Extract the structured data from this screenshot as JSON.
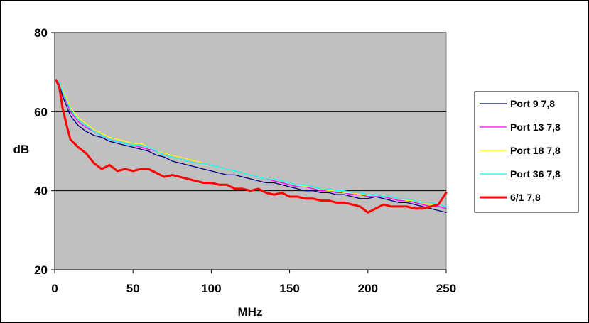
{
  "chart_data": {
    "type": "line",
    "title": "",
    "xlabel": "MHz",
    "ylabel": "dB",
    "xlim": [
      0,
      250
    ],
    "ylim": [
      20,
      80
    ],
    "xticks": [
      "0",
      "50",
      "100",
      "150",
      "200",
      "250"
    ],
    "yticks": [
      "20",
      "40",
      "60",
      "80"
    ],
    "grid": "horizontal",
    "plot_background": "#c0c0c0",
    "legend_position": "right",
    "x": [
      1,
      3,
      5,
      8,
      10,
      15,
      20,
      25,
      30,
      35,
      40,
      45,
      50,
      55,
      60,
      65,
      70,
      75,
      80,
      85,
      90,
      95,
      100,
      105,
      110,
      115,
      120,
      125,
      130,
      135,
      140,
      145,
      150,
      155,
      160,
      165,
      170,
      175,
      180,
      185,
      190,
      195,
      200,
      205,
      210,
      215,
      220,
      225,
      230,
      235,
      240,
      245,
      250
    ],
    "series": [
      {
        "name": "Port 9 7,8",
        "color": "#000080",
        "width": 1.3,
        "values": [
          68,
          67,
          64,
          61,
          59,
          56.5,
          55,
          54,
          53.5,
          52.5,
          52,
          51.5,
          51,
          50.5,
          50,
          49,
          48.5,
          47.5,
          47,
          46.5,
          46,
          45.5,
          45,
          44.5,
          44,
          44,
          43.5,
          43,
          42.5,
          42,
          42,
          41.5,
          41,
          40.5,
          40,
          40,
          39.5,
          39.5,
          39,
          39,
          38.5,
          38,
          38,
          38.5,
          38,
          37.5,
          37,
          37,
          36.5,
          36,
          35.5,
          35,
          34.5
        ]
      },
      {
        "name": "Port 13 7,8",
        "color": "#ff00ff",
        "width": 1.3,
        "values": [
          68,
          67,
          65,
          62,
          60,
          57.5,
          56,
          55,
          54,
          53,
          52.5,
          52,
          51.5,
          51,
          50.5,
          50,
          49.5,
          49,
          48.5,
          48,
          47.5,
          47,
          46.5,
          46,
          45.5,
          45,
          44.5,
          44,
          43.5,
          43,
          42.5,
          42,
          41.5,
          41,
          41,
          40.5,
          40,
          40,
          39.5,
          39.5,
          39,
          39,
          38.5,
          38.5,
          38.5,
          38,
          37.5,
          37.5,
          37,
          36.5,
          36,
          36,
          35.5
        ]
      },
      {
        "name": "Port 18 7,8",
        "color": "#ffff00",
        "width": 1.3,
        "values": [
          68,
          67.5,
          65.5,
          63,
          61,
          58.5,
          57,
          55.5,
          54.5,
          53.5,
          53,
          52.5,
          52,
          52,
          51,
          50,
          49.5,
          49,
          48.5,
          48,
          47.5,
          47,
          46.5,
          46,
          45.5,
          45,
          44.5,
          44,
          43.5,
          43,
          43,
          42.5,
          42,
          41.5,
          41,
          41,
          40.5,
          40,
          40,
          39.5,
          39.5,
          39,
          39,
          39,
          38.5,
          38.5,
          38,
          37.5,
          37.5,
          37,
          36.5,
          36.5,
          36
        ]
      },
      {
        "name": "Port 36 7,8",
        "color": "#00ffff",
        "width": 1.3,
        "values": [
          68,
          67.5,
          65,
          62.5,
          60.5,
          58,
          56.5,
          55,
          54,
          53,
          52.5,
          52,
          51.5,
          51.5,
          51,
          50,
          49,
          48.5,
          48,
          47.5,
          47,
          47,
          46.5,
          46,
          45.5,
          45,
          44.5,
          44,
          43.5,
          43,
          43,
          42.5,
          42,
          41.5,
          41.5,
          41,
          40.5,
          40.5,
          40,
          40,
          39.5,
          39.5,
          39,
          39,
          38.5,
          38.5,
          38,
          38,
          37.5,
          37,
          37,
          36.5,
          36
        ]
      },
      {
        "name": "6/1 7,8",
        "color": "#ff0000",
        "width": 3,
        "values": [
          68,
          66,
          61,
          56,
          53,
          51,
          49.5,
          47,
          45.5,
          46.5,
          45,
          45.5,
          45,
          45.5,
          45.5,
          44.5,
          43.5,
          44,
          43.5,
          43,
          42.5,
          42,
          42,
          41.5,
          41.5,
          40.5,
          40.5,
          40,
          40.5,
          39.5,
          39,
          39.5,
          38.5,
          38.5,
          38,
          38,
          37.5,
          37.5,
          37,
          37,
          36.5,
          36,
          34.5,
          35.5,
          36.5,
          36,
          36,
          36,
          35.5,
          35.5,
          36,
          36.5,
          39.5
        ]
      }
    ]
  }
}
